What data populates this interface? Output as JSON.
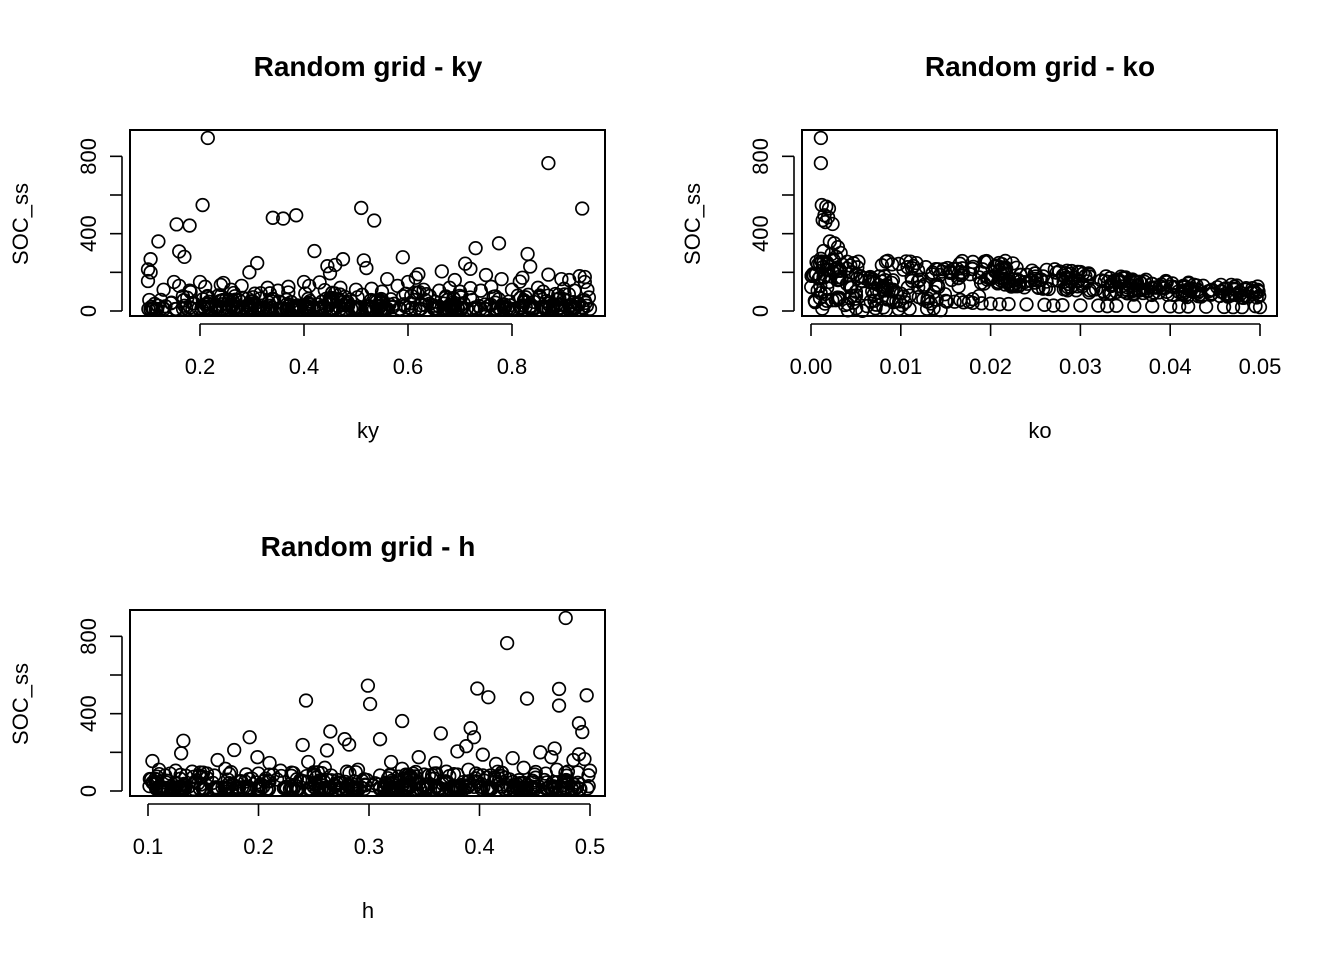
{
  "chart_data": [
    {
      "type": "scatter",
      "title": "Random grid -  ky",
      "xlabel": "ky",
      "ylabel": "SOC_ss",
      "xlim": [
        0.1,
        0.95
      ],
      "ylim": [
        0,
        900
      ],
      "xticks": [
        "0.2",
        "0.4",
        "0.6",
        "0.8"
      ],
      "yticks": [
        "0",
        "400",
        "800"
      ],
      "points": [
        [
          0.215,
          895
        ],
        [
          0.87,
          765
        ],
        [
          0.205,
          548
        ],
        [
          0.51,
          533
        ],
        [
          0.935,
          530
        ],
        [
          0.385,
          495
        ],
        [
          0.34,
          482
        ],
        [
          0.36,
          478
        ],
        [
          0.535,
          468
        ],
        [
          0.155,
          448
        ],
        [
          0.18,
          442
        ],
        [
          0.12,
          360
        ],
        [
          0.775,
          350
        ],
        [
          0.73,
          325
        ],
        [
          0.42,
          310
        ],
        [
          0.16,
          308
        ],
        [
          0.83,
          295
        ],
        [
          0.17,
          280
        ],
        [
          0.59,
          278
        ],
        [
          0.105,
          268
        ],
        [
          0.475,
          268
        ],
        [
          0.515,
          262
        ],
        [
          0.31,
          248
        ],
        [
          0.71,
          245
        ],
        [
          0.46,
          238
        ],
        [
          0.445,
          232
        ],
        [
          0.835,
          230
        ],
        [
          0.52,
          222
        ],
        [
          0.72,
          218
        ],
        [
          0.1,
          215
        ],
        [
          0.105,
          200
        ],
        [
          0.295,
          200
        ],
        [
          0.665,
          205
        ],
        [
          0.45,
          195
        ],
        [
          0.62,
          190
        ],
        [
          0.87,
          188
        ],
        [
          0.75,
          186
        ],
        [
          0.93,
          180
        ],
        [
          0.94,
          176
        ],
        [
          0.82,
          172
        ],
        [
          0.56,
          165
        ],
        [
          0.615,
          172
        ],
        [
          0.69,
          160
        ],
        [
          0.78,
          165
        ],
        [
          0.1,
          155
        ],
        [
          0.15,
          150
        ],
        [
          0.2,
          150
        ],
        [
          0.245,
          145
        ],
        [
          0.4,
          150
        ],
        [
          0.43,
          148
        ],
        [
          0.6,
          150
        ],
        [
          0.815,
          152
        ],
        [
          0.895,
          165
        ],
        [
          0.91,
          160
        ],
        [
          0.94,
          150
        ],
        [
          0.16,
          130
        ],
        [
          0.21,
          125
        ],
        [
          0.24,
          135
        ],
        [
          0.28,
          130
        ],
        [
          0.33,
          120
        ],
        [
          0.37,
          125
        ],
        [
          0.41,
          130
        ],
        [
          0.47,
          120
        ],
        [
          0.53,
          115
        ],
        [
          0.58,
          130
        ],
        [
          0.63,
          110
        ],
        [
          0.68,
          120
        ],
        [
          0.72,
          118
        ],
        [
          0.76,
          125
        ],
        [
          0.8,
          110
        ],
        [
          0.85,
          120
        ],
        [
          0.9,
          115
        ],
        [
          0.13,
          110
        ],
        [
          0.18,
          105
        ],
        [
          0.26,
          110
        ],
        [
          0.35,
          105
        ],
        [
          0.44,
          108
        ],
        [
          0.5,
          110
        ],
        [
          0.55,
          100
        ],
        [
          0.66,
          105
        ],
        [
          0.7,
          100
        ],
        [
          0.74,
          105
        ],
        [
          0.86,
          100
        ],
        [
          0.92,
          105
        ],
        [
          0.945,
          110
        ]
      ]
    },
    {
      "type": "scatter",
      "title": "Random grid -  ko",
      "xlabel": "ko",
      "ylabel": "SOC_ss",
      "xlim": [
        0,
        0.05
      ],
      "ylim": [
        0,
        900
      ],
      "xticks": [
        "0.00",
        "0.01",
        "0.02",
        "0.03",
        "0.04",
        "0.05"
      ],
      "yticks": [
        "0",
        "400",
        "800"
      ],
      "points": [
        [
          0.0011,
          895
        ],
        [
          0.0011,
          765
        ],
        [
          0.0012,
          548
        ],
        [
          0.0017,
          540
        ],
        [
          0.002,
          530
        ],
        [
          0.0015,
          495
        ],
        [
          0.0019,
          485
        ],
        [
          0.0013,
          470
        ],
        [
          0.0024,
          450
        ],
        [
          0.0016,
          460
        ],
        [
          0.0021,
          360
        ],
        [
          0.0026,
          350
        ],
        [
          0.003,
          330
        ],
        [
          0.0014,
          310
        ],
        [
          0.0033,
          300
        ],
        [
          0.0023,
          295
        ],
        [
          0.0028,
          280
        ],
        [
          0.0011,
          270
        ],
        [
          0.0025,
          265
        ],
        [
          0.0018,
          250
        ],
        [
          0.0035,
          240
        ],
        [
          0.004,
          220
        ],
        [
          0.0045,
          200
        ],
        [
          0.0032,
          210
        ],
        [
          0.005,
          190
        ],
        [
          0.0055,
          180
        ],
        [
          0.006,
          170
        ],
        [
          0.0065,
          155
        ],
        [
          0.007,
          145
        ],
        [
          0.0075,
          135
        ],
        [
          0.008,
          125
        ],
        [
          0.0085,
          115
        ],
        [
          0.009,
          105
        ],
        [
          0.0095,
          95
        ],
        [
          0.01,
          90
        ],
        [
          0.011,
          80
        ],
        [
          0.012,
          72
        ],
        [
          0.013,
          65
        ],
        [
          0.014,
          58
        ],
        [
          0.015,
          52
        ],
        [
          0.016,
          48
        ],
        [
          0.017,
          45
        ],
        [
          0.018,
          42
        ],
        [
          0.019,
          40
        ],
        [
          0.02,
          38
        ],
        [
          0.022,
          36
        ],
        [
          0.024,
          34
        ],
        [
          0.026,
          32
        ],
        [
          0.028,
          30
        ],
        [
          0.03,
          29
        ],
        [
          0.032,
          28
        ],
        [
          0.034,
          27
        ],
        [
          0.036,
          26
        ],
        [
          0.038,
          25
        ],
        [
          0.04,
          24
        ],
        [
          0.042,
          23
        ],
        [
          0.044,
          22
        ],
        [
          0.046,
          21
        ],
        [
          0.048,
          20
        ],
        [
          0.05,
          20
        ],
        [
          0.005,
          100
        ],
        [
          0.006,
          90
        ],
        [
          0.007,
          85
        ],
        [
          0.0045,
          120
        ],
        [
          0.004,
          140
        ],
        [
          0.003,
          160
        ],
        [
          0.0025,
          200
        ],
        [
          0.002,
          150
        ],
        [
          0.0018,
          120
        ],
        [
          0.0022,
          180
        ],
        [
          0.0125,
          60
        ],
        [
          0.021,
          35
        ],
        [
          0.027,
          28
        ],
        [
          0.033,
          25
        ],
        [
          0.041,
          22
        ],
        [
          0.047,
          20
        ],
        [
          0.0495,
          25
        ],
        [
          0.0085,
          60
        ],
        [
          0.0095,
          50
        ],
        [
          0.0105,
          45
        ]
      ]
    },
    {
      "type": "scatter",
      "title": "Random grid -  h",
      "xlabel": "h",
      "ylabel": "SOC_ss",
      "xlim": [
        0.1,
        0.5
      ],
      "ylim": [
        0,
        900
      ],
      "xticks": [
        "0.1",
        "0.2",
        "0.3",
        "0.4",
        "0.5"
      ],
      "yticks": [
        "0",
        "400",
        "800"
      ],
      "points": [
        [
          0.478,
          895
        ],
        [
          0.425,
          765
        ],
        [
          0.299,
          545
        ],
        [
          0.398,
          530
        ],
        [
          0.472,
          528
        ],
        [
          0.497,
          495
        ],
        [
          0.408,
          485
        ],
        [
          0.443,
          478
        ],
        [
          0.243,
          468
        ],
        [
          0.301,
          450
        ],
        [
          0.472,
          442
        ],
        [
          0.33,
          362
        ],
        [
          0.49,
          350
        ],
        [
          0.392,
          325
        ],
        [
          0.265,
          308
        ],
        [
          0.493,
          305
        ],
        [
          0.365,
          298
        ],
        [
          0.395,
          278
        ],
        [
          0.192,
          278
        ],
        [
          0.278,
          268
        ],
        [
          0.132,
          260
        ],
        [
          0.282,
          240
        ],
        [
          0.31,
          268
        ],
        [
          0.24,
          238
        ],
        [
          0.388,
          232
        ],
        [
          0.468,
          220
        ],
        [
          0.178,
          212
        ],
        [
          0.262,
          210
        ],
        [
          0.38,
          205
        ],
        [
          0.455,
          200
        ],
        [
          0.13,
          195
        ],
        [
          0.49,
          190
        ],
        [
          0.403,
          188
        ],
        [
          0.199,
          175
        ],
        [
          0.345,
          175
        ],
        [
          0.43,
          170
        ],
        [
          0.465,
          175
        ],
        [
          0.104,
          155
        ],
        [
          0.163,
          160
        ],
        [
          0.21,
          145
        ],
        [
          0.245,
          150
        ],
        [
          0.32,
          150
        ],
        [
          0.36,
          145
        ],
        [
          0.415,
          140
        ],
        [
          0.485,
          160
        ],
        [
          0.495,
          165
        ],
        [
          0.11,
          110
        ],
        [
          0.125,
          105
        ],
        [
          0.14,
          100
        ],
        [
          0.17,
          115
        ],
        [
          0.22,
          105
        ],
        [
          0.26,
          120
        ],
        [
          0.29,
          110
        ],
        [
          0.33,
          115
        ],
        [
          0.37,
          100
        ],
        [
          0.39,
          110
        ],
        [
          0.44,
          120
        ],
        [
          0.47,
          110
        ],
        [
          0.5,
          105
        ],
        [
          0.12,
          90
        ],
        [
          0.15,
          95
        ],
        [
          0.2,
          90
        ],
        [
          0.23,
          95
        ],
        [
          0.28,
          100
        ],
        [
          0.34,
          90
        ],
        [
          0.38,
          85
        ],
        [
          0.42,
          95
        ],
        [
          0.46,
          90
        ],
        [
          0.48,
          100
        ],
        [
          0.16,
          80
        ],
        [
          0.25,
          85
        ],
        [
          0.31,
          80
        ],
        [
          0.35,
          85
        ],
        [
          0.41,
          80
        ],
        [
          0.45,
          85
        ]
      ]
    }
  ]
}
